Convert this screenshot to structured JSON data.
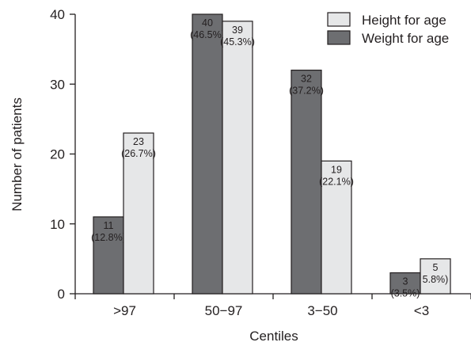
{
  "chart_data": {
    "type": "bar",
    "xlabel": "Centiles",
    "ylabel": "Number of patients",
    "ylim": [
      0,
      40
    ],
    "yticks": [
      0,
      10,
      20,
      30,
      40
    ],
    "categories": [
      ">97",
      "50−97",
      "3−50",
      "<3"
    ],
    "series": [
      {
        "name": "Weight for age",
        "color": "#6d6e71",
        "values": [
          11,
          40,
          32,
          3
        ],
        "labels": [
          "(12.8%)",
          "(46.5%)",
          "(37.2%)",
          "(3.5%)"
        ]
      },
      {
        "name": "Height for age",
        "color": "#e6e7e8",
        "values": [
          23,
          39,
          19,
          5
        ],
        "labels": [
          "(26.7%)",
          "(45.3%)",
          "(22.1%)",
          "5.8%)"
        ]
      }
    ],
    "legend": {
      "position": "top-right",
      "order": [
        "Height for age",
        "Weight for age"
      ]
    },
    "grid": false
  }
}
